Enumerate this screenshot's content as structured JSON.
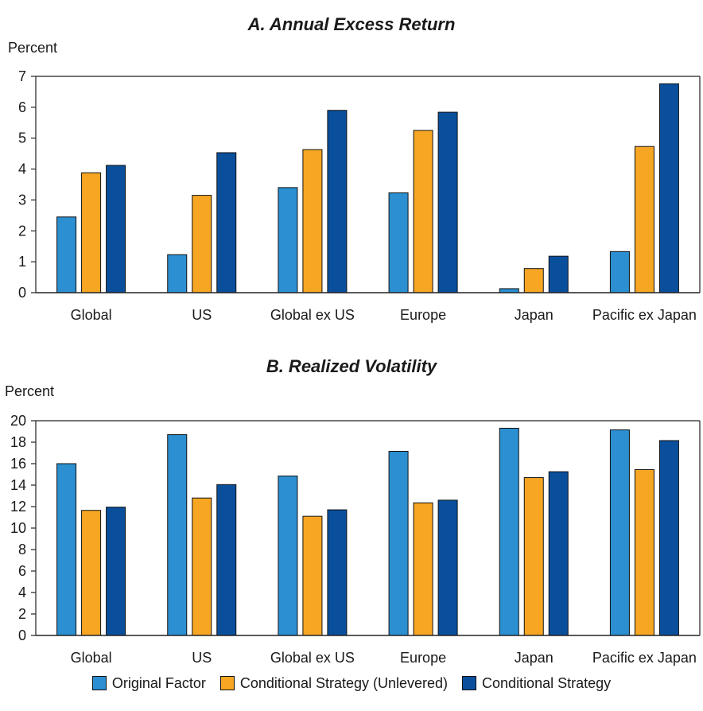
{
  "chart_data": [
    {
      "type": "bar",
      "title": "A. Annual Excess Return",
      "ylabel": "Percent",
      "ylim": [
        0,
        7
      ],
      "yticks": [
        0,
        1,
        2,
        3,
        4,
        5,
        6,
        7
      ],
      "categories": [
        "Global",
        "US",
        "Global ex US",
        "Europe",
        "Japan",
        "Pacific ex Japan"
      ],
      "series": [
        {
          "name": "Original Factor",
          "values": [
            2.45,
            1.23,
            3.4,
            3.23,
            0.13,
            1.33
          ]
        },
        {
          "name": "Conditional Strategy (Unlevered)",
          "values": [
            3.88,
            3.15,
            4.63,
            5.25,
            0.78,
            4.73
          ]
        },
        {
          "name": "Conditional Strategy",
          "values": [
            4.12,
            4.53,
            5.9,
            5.84,
            1.18,
            6.76
          ]
        }
      ]
    },
    {
      "type": "bar",
      "title": "B. Realized Volatility",
      "ylabel": "Percent",
      "ylim": [
        0,
        20
      ],
      "yticks": [
        0,
        2,
        4,
        6,
        8,
        10,
        12,
        14,
        16,
        18,
        20
      ],
      "categories": [
        "Global",
        "US",
        "Global ex US",
        "Europe",
        "Japan",
        "Pacific ex Japan"
      ],
      "series": [
        {
          "name": "Original Factor",
          "values": [
            16.0,
            18.7,
            14.85,
            17.15,
            19.3,
            19.15
          ]
        },
        {
          "name": "Conditional Strategy (Unlevered)",
          "values": [
            11.65,
            12.8,
            11.1,
            12.35,
            14.7,
            15.45
          ]
        },
        {
          "name": "Conditional Strategy",
          "values": [
            11.95,
            14.05,
            11.7,
            12.6,
            15.25,
            18.15
          ]
        }
      ]
    }
  ],
  "legend": {
    "position": "bottom",
    "items": [
      {
        "label": "Original Factor",
        "color": "#2b8fd1"
      },
      {
        "label": "Conditional Strategy (Unlevered)",
        "color": "#f6a623"
      },
      {
        "label": "Conditional Strategy",
        "color": "#0a4f9c"
      }
    ]
  },
  "colors": {
    "series": [
      "#2b8fd1",
      "#f6a623",
      "#0a4f9c"
    ],
    "axis": "#222222"
  }
}
